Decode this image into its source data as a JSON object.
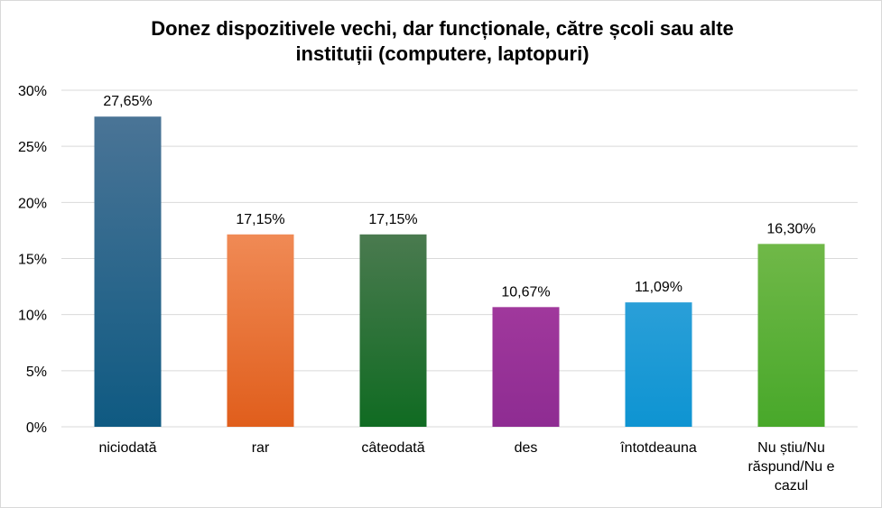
{
  "chart_data": {
    "type": "bar",
    "title": "Donez dispozitivele vechi, dar funcționale, către școli sau alte instituții (computere, laptopuri)",
    "title_lines": [
      "Donez dispozitivele vechi, dar funcționale, către școli sau alte",
      "instituții (computere, laptopuri)"
    ],
    "categories": [
      "niciodată",
      "rar",
      "câteodată",
      "des",
      "întotdeauna",
      "Nu știu/Nu răspund/Nu e cazul"
    ],
    "category_lines": [
      [
        "niciodată"
      ],
      [
        "rar"
      ],
      [
        "câteodată"
      ],
      [
        "des"
      ],
      [
        "întotdeauna"
      ],
      [
        "Nu știu/Nu",
        "răspund/Nu e",
        "cazul"
      ]
    ],
    "values": [
      27.65,
      17.15,
      17.15,
      10.67,
      11.09,
      16.3
    ],
    "data_labels": [
      "27,65%",
      "17,15%",
      "17,15%",
      "10,67%",
      "11,09%",
      "16,30%"
    ],
    "ylim": [
      0,
      30
    ],
    "y_ticks": [
      0,
      5,
      10,
      15,
      20,
      25,
      30
    ],
    "y_tick_labels": [
      "0%",
      "5%",
      "10%",
      "15%",
      "20%",
      "25%",
      "30%"
    ],
    "xlabel": "",
    "ylabel": "",
    "grid": true,
    "legend": "none",
    "colors": [
      [
        "#4a7496",
        "#0f5a82"
      ],
      [
        "#f08a55",
        "#e05e1c"
      ],
      [
        "#4a7a4f",
        "#106b22"
      ],
      [
        "#a0389c",
        "#8e2c92"
      ],
      [
        "#2a9fd8",
        "#0e94d2"
      ],
      [
        "#70b848",
        "#48a82a"
      ]
    ],
    "grid_color": "#d9d9d9"
  }
}
